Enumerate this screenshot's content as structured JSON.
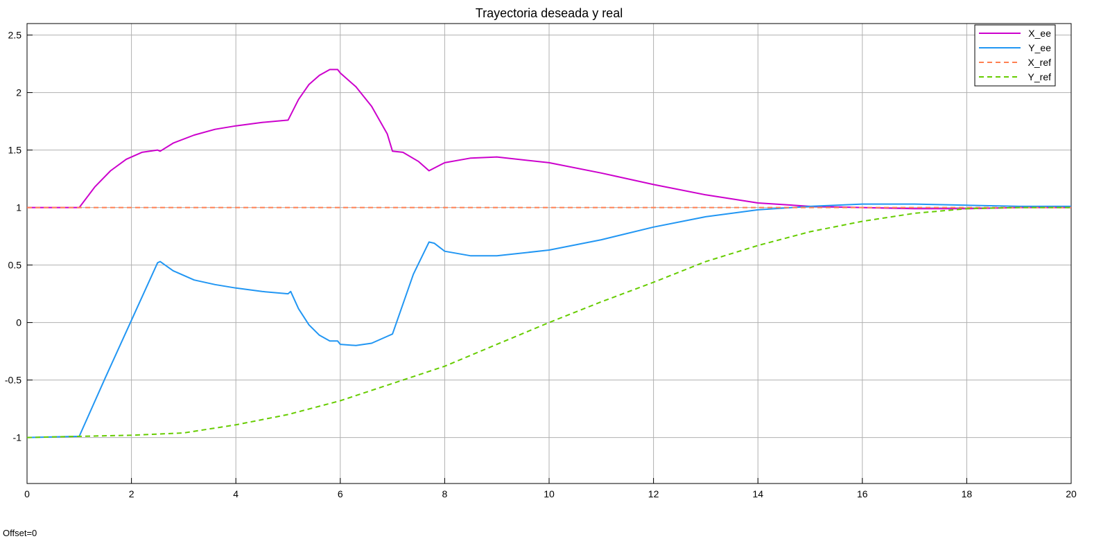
{
  "footer": {
    "offset_label": "Offset=0"
  },
  "chart_data": {
    "type": "line",
    "title": "Trayectoria deseada y real",
    "xlabel": "",
    "ylabel": "",
    "xlim": [
      0,
      20
    ],
    "ylim": [
      -1.4,
      2.6
    ],
    "xticks": [
      0,
      2,
      4,
      6,
      8,
      10,
      12,
      14,
      16,
      18,
      20
    ],
    "yticks": [
      -1,
      -0.5,
      0,
      0.5,
      1,
      1.5,
      2,
      2.5
    ],
    "grid": true,
    "legend_position": "top-right",
    "series": [
      {
        "name": "X_ee",
        "color": "#cc00cc",
        "dash": "solid",
        "points": [
          [
            0,
            1
          ],
          [
            1,
            1
          ],
          [
            1.3,
            1.18
          ],
          [
            1.6,
            1.32
          ],
          [
            1.9,
            1.42
          ],
          [
            2.2,
            1.48
          ],
          [
            2.5,
            1.5
          ],
          [
            2.55,
            1.49
          ],
          [
            2.8,
            1.56
          ],
          [
            3.2,
            1.63
          ],
          [
            3.6,
            1.68
          ],
          [
            4.0,
            1.71
          ],
          [
            4.5,
            1.74
          ],
          [
            5.0,
            1.76
          ],
          [
            5.2,
            1.94
          ],
          [
            5.4,
            2.07
          ],
          [
            5.6,
            2.15
          ],
          [
            5.8,
            2.2
          ],
          [
            5.95,
            2.2
          ],
          [
            6.0,
            2.17
          ],
          [
            6.3,
            2.05
          ],
          [
            6.6,
            1.88
          ],
          [
            6.9,
            1.64
          ],
          [
            7.0,
            1.49
          ],
          [
            7.2,
            1.48
          ],
          [
            7.5,
            1.4
          ],
          [
            7.7,
            1.32
          ],
          [
            8.0,
            1.39
          ],
          [
            8.5,
            1.43
          ],
          [
            9.0,
            1.44
          ],
          [
            10.0,
            1.39
          ],
          [
            11.0,
            1.3
          ],
          [
            12.0,
            1.2
          ],
          [
            13.0,
            1.11
          ],
          [
            14.0,
            1.04
          ],
          [
            15.0,
            1.01
          ],
          [
            16.0,
            1.0
          ],
          [
            17.0,
            0.99
          ],
          [
            18.0,
            0.99
          ],
          [
            19.0,
            1.0
          ],
          [
            20.0,
            1.0
          ]
        ]
      },
      {
        "name": "Y_ee",
        "color": "#2196f3",
        "dash": "solid",
        "points": [
          [
            0,
            -1
          ],
          [
            1,
            -0.99
          ],
          [
            1.5,
            -0.48
          ],
          [
            2.0,
            0.02
          ],
          [
            2.5,
            0.52
          ],
          [
            2.55,
            0.53
          ],
          [
            2.8,
            0.45
          ],
          [
            3.2,
            0.37
          ],
          [
            3.6,
            0.33
          ],
          [
            4.0,
            0.3
          ],
          [
            4.5,
            0.27
          ],
          [
            5.0,
            0.25
          ],
          [
            5.05,
            0.27
          ],
          [
            5.2,
            0.12
          ],
          [
            5.4,
            -0.02
          ],
          [
            5.6,
            -0.11
          ],
          [
            5.8,
            -0.16
          ],
          [
            5.95,
            -0.16
          ],
          [
            6.0,
            -0.19
          ],
          [
            6.3,
            -0.2
          ],
          [
            6.6,
            -0.18
          ],
          [
            6.9,
            -0.12
          ],
          [
            7.0,
            -0.1
          ],
          [
            7.4,
            0.42
          ],
          [
            7.7,
            0.7
          ],
          [
            7.8,
            0.69
          ],
          [
            8.0,
            0.62
          ],
          [
            8.5,
            0.58
          ],
          [
            9.0,
            0.58
          ],
          [
            10.0,
            0.63
          ],
          [
            11.0,
            0.72
          ],
          [
            12.0,
            0.83
          ],
          [
            13.0,
            0.92
          ],
          [
            14.0,
            0.98
          ],
          [
            15.0,
            1.01
          ],
          [
            16.0,
            1.03
          ],
          [
            17.0,
            1.03
          ],
          [
            18.0,
            1.02
          ],
          [
            19.0,
            1.01
          ],
          [
            20.0,
            1.01
          ]
        ]
      },
      {
        "name": "X_ref",
        "color": "#ff7f50",
        "dash": "dashed",
        "points": [
          [
            0,
            1
          ],
          [
            20,
            1
          ]
        ]
      },
      {
        "name": "Y_ref",
        "color": "#66cc00",
        "dash": "dashed",
        "points": [
          [
            0,
            -1
          ],
          [
            1,
            -0.99
          ],
          [
            2,
            -0.98
          ],
          [
            3,
            -0.96
          ],
          [
            4,
            -0.89
          ],
          [
            5,
            -0.8
          ],
          [
            6,
            -0.68
          ],
          [
            7,
            -0.53
          ],
          [
            8,
            -0.38
          ],
          [
            9,
            -0.19
          ],
          [
            10,
            0.0
          ],
          [
            11,
            0.18
          ],
          [
            12,
            0.35
          ],
          [
            13,
            0.53
          ],
          [
            14,
            0.67
          ],
          [
            15,
            0.79
          ],
          [
            16,
            0.88
          ],
          [
            17,
            0.95
          ],
          [
            18,
            0.99
          ],
          [
            19,
            1.0
          ],
          [
            20,
            1.0
          ]
        ]
      }
    ]
  }
}
